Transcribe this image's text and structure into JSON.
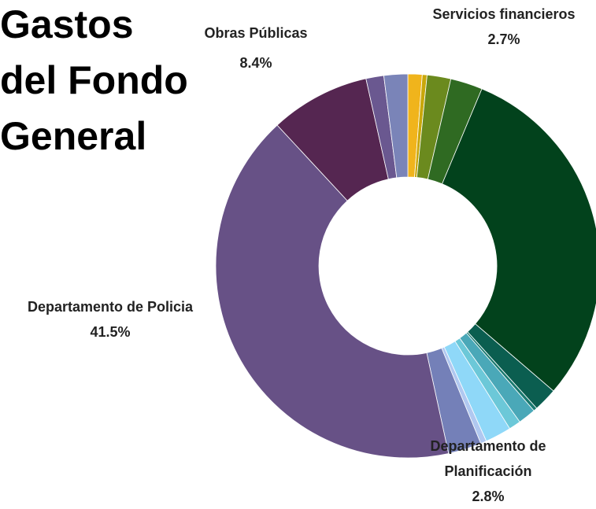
{
  "chart_data": {
    "type": "donut",
    "title_lines": [
      "Gastos",
      "del Fondo",
      "General"
    ],
    "categories": [
      null,
      null,
      null,
      "Servicios financieros",
      null,
      null,
      null,
      null,
      null,
      null,
      null,
      "Departamento de Planificación",
      "Departamento de Policia",
      "Obras Públicas",
      null,
      null
    ],
    "values": [
      1.2,
      0.4,
      2,
      2.7,
      30,
      2,
      0.3,
      1.5,
      1,
      2.2,
      0.5,
      2.8,
      41.5,
      8.4,
      1.5,
      2
    ],
    "value_labels": [
      null,
      null,
      null,
      "2.7%",
      null,
      null,
      null,
      null,
      null,
      null,
      null,
      "2.8%",
      "41.5%",
      "8.4%",
      null,
      null
    ],
    "colors": [
      "#f0b41c",
      "#c9a70a",
      "#6b8a1e",
      "#2f6a22",
      "#02421c",
      "#0b5e50",
      "#1a7a70",
      "#4aa8b8",
      "#6cc8d8",
      "#8fd8f8",
      "#b0c8f0",
      "#7480b8",
      "#675186",
      "#552651",
      "#6a5890",
      "#7a84b8"
    ]
  }
}
